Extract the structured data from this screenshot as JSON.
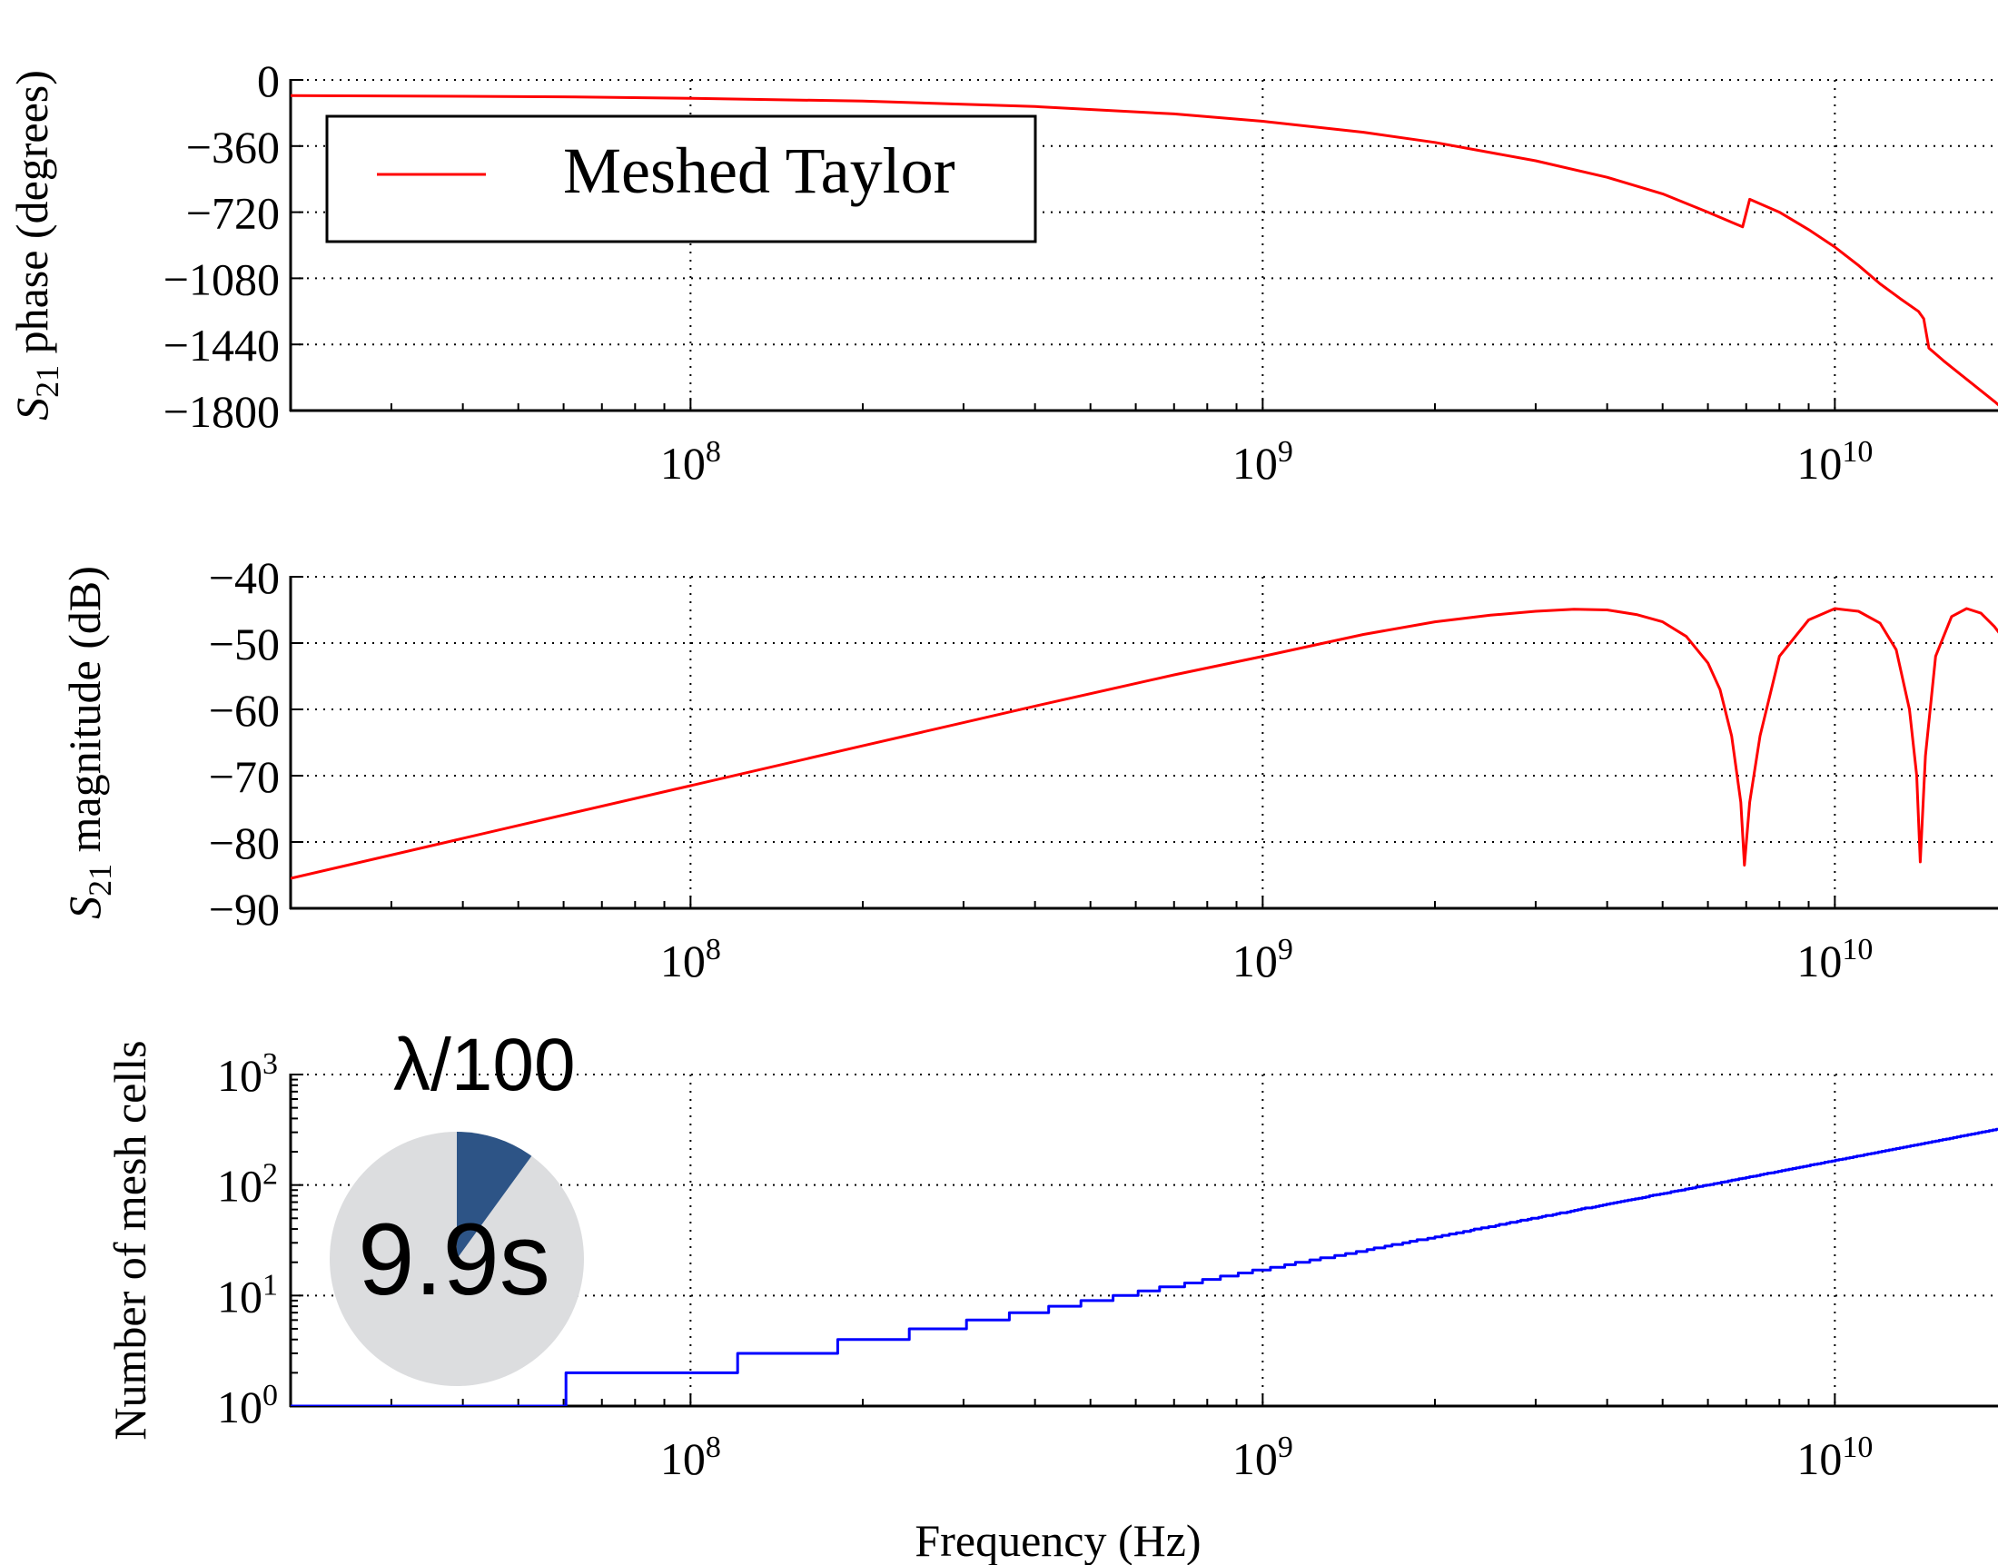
{
  "chart_data": [
    {
      "type": "line",
      "id": "phase",
      "ylabel": {
        "sym": "S",
        "sub": "21",
        "rest": " phase (degrees)"
      },
      "xscale": "log",
      "xlim": [
        20000000,
        20000000000
      ],
      "ylim": [
        -1800,
        0
      ],
      "yticks": [
        0,
        -360,
        -720,
        -1080,
        -1440,
        -1800
      ],
      "ytick_labels": [
        "0",
        "−360",
        "−720",
        "−1080",
        "−1440",
        "−1800"
      ],
      "xticks": [
        {
          "value": 100000000,
          "base": "10",
          "exp": "8"
        },
        {
          "value": 1000000000,
          "base": "10",
          "exp": "9"
        },
        {
          "value": 10000000000,
          "base": "10",
          "exp": "10"
        }
      ],
      "grid": true,
      "legend": {
        "position": "upper-left",
        "entries": [
          {
            "label": "Meshed Taylor",
            "color": "#ff0000"
          }
        ]
      },
      "series": [
        {
          "name": "Meshed Taylor",
          "color": "#ff0000",
          "x": [
            20000000,
            40000000,
            60000000,
            100000000,
            200000000,
            400000000,
            700000000,
            1000000000,
            1500000000,
            2000000000,
            3000000000,
            4000000000,
            5000000000,
            6000000000,
            6900000000,
            7100000000,
            8000000000,
            9000000000,
            10000000000,
            11000000000,
            12000000000,
            13000000000,
            14000000000,
            14300000000,
            14600000000,
            15500000000,
            17000000000,
            19000000000,
            20000000000
          ],
          "y": [
            -85,
            -89,
            -92,
            -100,
            -115,
            -145,
            -185,
            -225,
            -285,
            -340,
            -440,
            -530,
            -620,
            -720,
            -800,
            -650,
            -720,
            -815,
            -910,
            -1010,
            -1110,
            -1190,
            -1260,
            -1300,
            -1460,
            -1530,
            -1630,
            -1750,
            -1810
          ]
        }
      ]
    },
    {
      "type": "line",
      "id": "magnitude",
      "ylabel": {
        "sym": "S",
        "sub": "21",
        "rest": " magnitude (dB)"
      },
      "xscale": "log",
      "xlim": [
        20000000,
        20000000000
      ],
      "ylim": [
        -90,
        -40
      ],
      "yticks": [
        -40,
        -50,
        -60,
        -70,
        -80,
        -90
      ],
      "ytick_labels": [
        "−40",
        "−50",
        "−60",
        "−70",
        "−80",
        "−90"
      ],
      "xticks": [
        {
          "value": 100000000,
          "base": "10",
          "exp": "8"
        },
        {
          "value": 1000000000,
          "base": "10",
          "exp": "9"
        },
        {
          "value": 10000000000,
          "base": "10",
          "exp": "10"
        }
      ],
      "grid": true,
      "series": [
        {
          "color": "#ff0000",
          "x": [
            20000000,
            50000000,
            100000000,
            200000000,
            400000000,
            700000000,
            1000000000,
            1500000000,
            2000000000,
            2500000000,
            3000000000,
            3500000000,
            4000000000,
            4500000000,
            5000000000,
            5500000000,
            6000000000,
            6300000000,
            6600000000,
            6850000000,
            6950000000,
            7100000000,
            7400000000,
            8000000000,
            9000000000,
            10000000000,
            11000000000,
            12000000000,
            12800000000,
            13500000000,
            13900000000,
            14100000000,
            14400000000,
            15000000000,
            16000000000,
            17000000000,
            18000000000,
            19000000000,
            20000000000
          ],
          "y": [
            -85.5,
            -77.5,
            -71.5,
            -65.5,
            -59.5,
            -54.8,
            -52,
            -48.7,
            -46.8,
            -45.8,
            -45.2,
            -44.9,
            -45.0,
            -45.7,
            -46.8,
            -49,
            -53,
            -57,
            -64,
            -74,
            -83.5,
            -74,
            -64,
            -52,
            -46.5,
            -44.8,
            -45.2,
            -47,
            -51,
            -60,
            -70,
            -83,
            -67,
            -52,
            -46,
            -44.8,
            -45.5,
            -47.5,
            -50
          ]
        }
      ]
    },
    {
      "type": "line",
      "id": "mesh",
      "ylabel": {
        "sym": "",
        "sub": "",
        "rest": "Number of mesh cells"
      },
      "xlabel": "Frequency (Hz)",
      "xscale": "log",
      "yscale": "log",
      "xlim": [
        20000000,
        20000000000
      ],
      "ylim": [
        1,
        1000
      ],
      "yticks": [
        {
          "value": 1,
          "base": "10",
          "exp": "0"
        },
        {
          "value": 10,
          "base": "10",
          "exp": "1"
        },
        {
          "value": 100,
          "base": "10",
          "exp": "2"
        },
        {
          "value": 1000,
          "base": "10",
          "exp": "3"
        }
      ],
      "xticks": [
        {
          "value": 100000000,
          "base": "10",
          "exp": "8"
        },
        {
          "value": 1000000000,
          "base": "10",
          "exp": "9"
        },
        {
          "value": 10000000000,
          "base": "10",
          "exp": "10"
        }
      ],
      "grid": true,
      "series": [
        {
          "color": "#0000ff",
          "step_every": 60000000,
          "x_start": 20000000,
          "x_end": 20000000000,
          "points_per_decade": 160
        }
      ],
      "annotation": {
        "title": "λ/100",
        "time": "9.9s",
        "progress_fraction": 0.1,
        "pie_fill": "#2d5486",
        "pie_bg": "#dcdddf"
      }
    }
  ]
}
